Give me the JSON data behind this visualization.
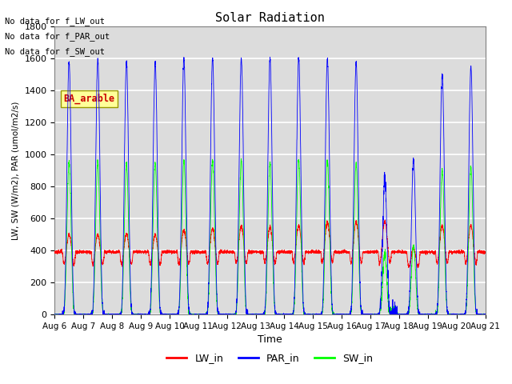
{
  "title": "Solar Radiation",
  "ylabel": "LW, SW (W/m2), PAR (umol/m2/s)",
  "xlabel": "Time",
  "ylim": [
    0,
    1800
  ],
  "yticks": [
    0,
    200,
    400,
    600,
    800,
    1000,
    1200,
    1400,
    1600,
    1800
  ],
  "xticklabels": [
    "Aug 6",
    "Aug 7",
    "Aug 8",
    "Aug 9",
    "Aug 10",
    "Aug 11",
    "Aug 12",
    "Aug 13",
    "Aug 14",
    "Aug 15",
    "Aug 16",
    "Aug 17",
    "Aug 18",
    "Aug 19",
    "Aug 20",
    "Aug 21"
  ],
  "no_data_texts": [
    "No data for f_LW_out",
    "No data for f_PAR_out",
    "No data for f_SW_out"
  ],
  "annotation_text": "BA_arable",
  "annotation_color": "#cc0000",
  "annotation_bg": "#ffff99",
  "lw_in_color": "red",
  "par_in_color": "blue",
  "sw_in_color": "lime",
  "background_color": "#dcdcdc",
  "grid_color": "white",
  "n_days": 15,
  "samples_per_day": 288
}
